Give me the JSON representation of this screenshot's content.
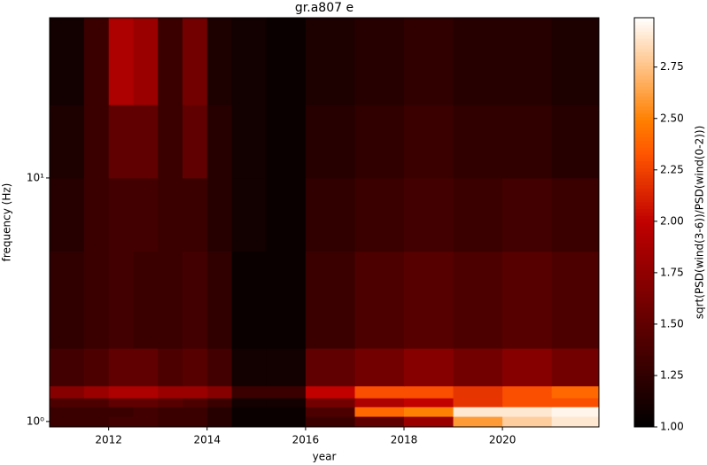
{
  "chart_data": {
    "type": "heatmap",
    "title": "gr.a807 e",
    "x_label": "year",
    "y_label": "frequency (Hz)",
    "colorbar_label": "sqrt(PSD(wind(3-6))/PSD(wind(0-2)))",
    "colormap": "gist_heat",
    "y_scale": "log",
    "xlim": [
      2010.8,
      2021.96
    ],
    "ylim": [
      0.95,
      45.5
    ],
    "clim": [
      1.0,
      2.99
    ],
    "xticks": [
      2012,
      2014,
      2016,
      2018,
      2020
    ],
    "yticks": [
      {
        "value": 1,
        "label": "10⁰"
      },
      {
        "value": 10,
        "label": "10¹"
      }
    ],
    "cticks": [
      {
        "value": 1,
        "label": "1.00"
      },
      1.25,
      {
        "value": 1.5,
        "label": "1.50"
      },
      1.75,
      {
        "value": 2,
        "label": "2.00"
      },
      2.25,
      {
        "value": 2.5,
        "label": "2.50"
      },
      2.75
    ],
    "x_edges": [
      2010.8,
      2011.5,
      2012,
      2012.5,
      2013,
      2013.5,
      2014,
      2014.5,
      2015.2,
      2016,
      2017,
      2018,
      2019,
      2020,
      2021,
      2021.96
    ],
    "y_edges": [
      0.95,
      1.05,
      1.15,
      1.25,
      1.4,
      2,
      5,
      10,
      20,
      45.5
    ],
    "values": [
      [
        1.3,
        1.3,
        1.35,
        1.35,
        1.3,
        1.3,
        1.2,
        1.05,
        1.05,
        1.3,
        1.5,
        1.8,
        2.6,
        2.8,
        2.9
      ],
      [
        1.3,
        1.3,
        1.3,
        1.35,
        1.3,
        1.3,
        1.2,
        1.05,
        1.05,
        1.4,
        2.4,
        2.5,
        2.9,
        2.9,
        2.95
      ],
      [
        1.4,
        1.4,
        1.5,
        1.5,
        1.45,
        1.4,
        1.3,
        1.1,
        1.1,
        1.6,
        1.9,
        2.0,
        2.2,
        2.3,
        2.3
      ],
      [
        1.7,
        1.8,
        1.9,
        1.9,
        1.8,
        1.8,
        1.7,
        1.3,
        1.3,
        2.0,
        2.3,
        2.3,
        2.2,
        2.3,
        2.4
      ],
      [
        1.35,
        1.4,
        1.5,
        1.5,
        1.4,
        1.45,
        1.35,
        1.1,
        1.1,
        1.5,
        1.6,
        1.7,
        1.6,
        1.7,
        1.6
      ],
      [
        1.25,
        1.3,
        1.35,
        1.3,
        1.3,
        1.35,
        1.25,
        1.05,
        1.05,
        1.3,
        1.4,
        1.45,
        1.4,
        1.45,
        1.4
      ],
      [
        1.2,
        1.3,
        1.35,
        1.35,
        1.3,
        1.3,
        1.2,
        1.1,
        1.05,
        1.25,
        1.3,
        1.35,
        1.3,
        1.35,
        1.3
      ],
      [
        1.15,
        1.3,
        1.5,
        1.5,
        1.3,
        1.5,
        1.2,
        1.1,
        1.05,
        1.2,
        1.25,
        1.3,
        1.25,
        1.25,
        1.2
      ],
      [
        1.1,
        1.3,
        1.9,
        1.8,
        1.3,
        1.6,
        1.15,
        1.1,
        1.05,
        1.15,
        1.2,
        1.25,
        1.2,
        1.2,
        1.15
      ]
    ]
  }
}
